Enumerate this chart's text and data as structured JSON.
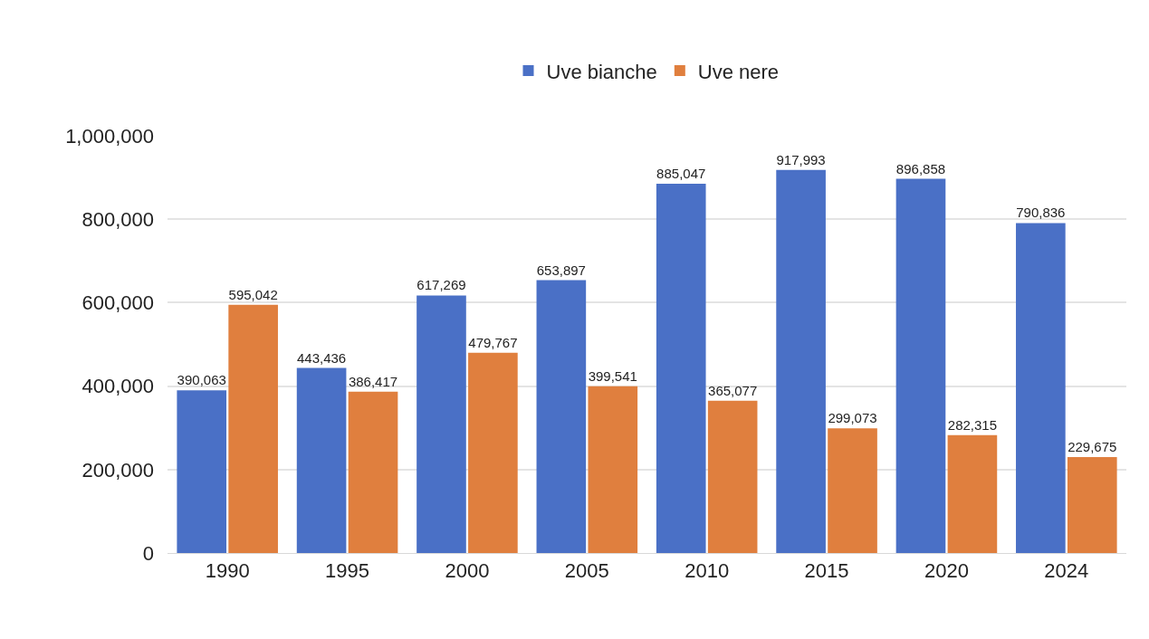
{
  "chart_data": {
    "type": "bar",
    "categories": [
      "1990",
      "1995",
      "2000",
      "2005",
      "2010",
      "2015",
      "2020",
      "2024"
    ],
    "series": [
      {
        "name": "Uve bianche",
        "color": "#4a70c6",
        "values": [
          390063,
          443436,
          617269,
          653897,
          885047,
          917993,
          896858,
          790836
        ],
        "value_labels": [
          "390,063",
          "443,436",
          "617,269",
          "653,897",
          "885,047",
          "917,993",
          "896,858",
          "790,836"
        ]
      },
      {
        "name": "Uve nere",
        "color": "#e07f3e",
        "values": [
          595042,
          386417,
          479767,
          399541,
          365077,
          299073,
          282315,
          229675
        ],
        "value_labels": [
          "595,042",
          "386,417",
          "479,767",
          "399,541",
          "365,077",
          "299,073",
          "282,315",
          "229,675"
        ]
      }
    ],
    "ylim": [
      0,
      1000000
    ],
    "yticks": [
      0,
      {
        "value": 200000,
        "label": "200,000"
      },
      {
        "value": 400000,
        "label": "400,000"
      },
      {
        "value": 600000,
        "label": "600,000"
      },
      {
        "value": 800000,
        "label": "800,000"
      },
      {
        "value": 1000000,
        "label": "1,000,000"
      }
    ],
    "grid": "y",
    "legend": "top"
  }
}
